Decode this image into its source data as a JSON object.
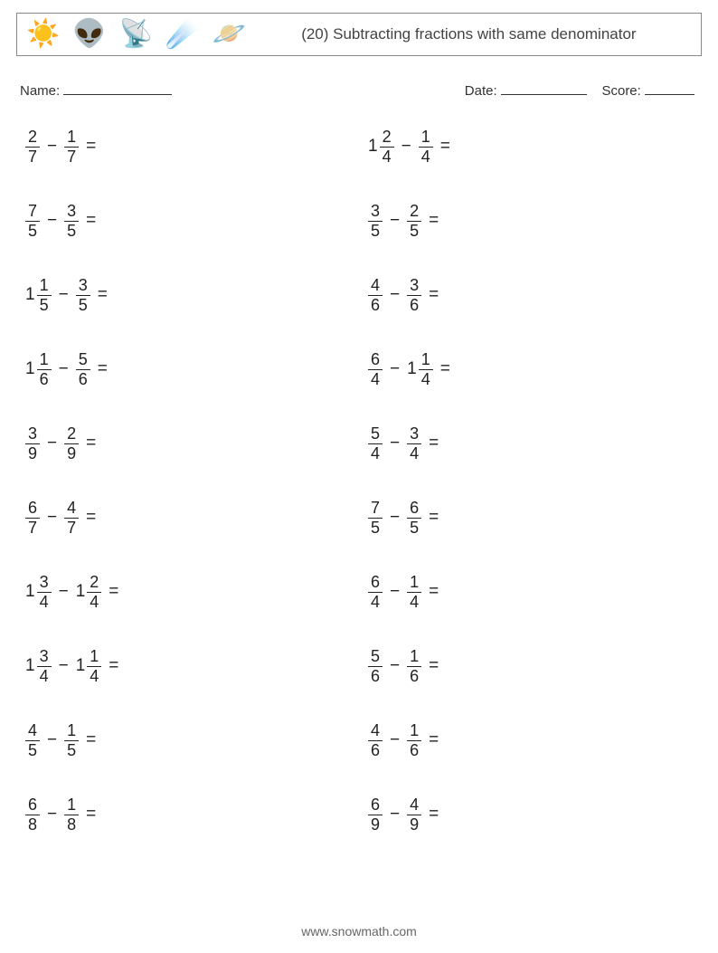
{
  "header": {
    "title": "(20) Subtracting fractions with same denominator",
    "icons": [
      "sun",
      "alien",
      "antenna",
      "meteor",
      "saturn"
    ]
  },
  "meta": {
    "name_label": "Name:",
    "date_label": "Date:",
    "score_label": "Score:"
  },
  "icon_glyphs": {
    "sun": "☀️",
    "alien": "👽",
    "antenna": "📡",
    "meteor": "☄️",
    "saturn": "🪐"
  },
  "layout": {
    "columns": 2,
    "rows": 10
  },
  "style": {
    "page_bg": "#ffffff",
    "text_color": "#333333",
    "border_color": "#888888",
    "fraction_bar_color": "#222222",
    "title_fontsize": 17,
    "body_fontsize": 19,
    "fraction_fontsize": 18
  },
  "minus": "−",
  "equals": "=",
  "problems": [
    {
      "col": 0,
      "a": {
        "n": 2,
        "d": 7
      },
      "b": {
        "n": 1,
        "d": 7
      }
    },
    {
      "col": 1,
      "a": {
        "whole": 1,
        "n": 2,
        "d": 4
      },
      "b": {
        "n": 1,
        "d": 4
      }
    },
    {
      "col": 0,
      "a": {
        "n": 7,
        "d": 5
      },
      "b": {
        "n": 3,
        "d": 5
      }
    },
    {
      "col": 1,
      "a": {
        "n": 3,
        "d": 5
      },
      "b": {
        "n": 2,
        "d": 5
      }
    },
    {
      "col": 0,
      "a": {
        "whole": 1,
        "n": 1,
        "d": 5
      },
      "b": {
        "n": 3,
        "d": 5
      }
    },
    {
      "col": 1,
      "a": {
        "n": 4,
        "d": 6
      },
      "b": {
        "n": 3,
        "d": 6
      }
    },
    {
      "col": 0,
      "a": {
        "whole": 1,
        "n": 1,
        "d": 6
      },
      "b": {
        "n": 5,
        "d": 6
      }
    },
    {
      "col": 1,
      "a": {
        "n": 6,
        "d": 4
      },
      "b": {
        "whole": 1,
        "n": 1,
        "d": 4
      }
    },
    {
      "col": 0,
      "a": {
        "n": 3,
        "d": 9
      },
      "b": {
        "n": 2,
        "d": 9
      }
    },
    {
      "col": 1,
      "a": {
        "n": 5,
        "d": 4
      },
      "b": {
        "n": 3,
        "d": 4
      }
    },
    {
      "col": 0,
      "a": {
        "n": 6,
        "d": 7
      },
      "b": {
        "n": 4,
        "d": 7
      }
    },
    {
      "col": 1,
      "a": {
        "n": 7,
        "d": 5
      },
      "b": {
        "n": 6,
        "d": 5
      }
    },
    {
      "col": 0,
      "a": {
        "whole": 1,
        "n": 3,
        "d": 4
      },
      "b": {
        "whole": 1,
        "n": 2,
        "d": 4
      }
    },
    {
      "col": 1,
      "a": {
        "n": 6,
        "d": 4
      },
      "b": {
        "n": 1,
        "d": 4
      }
    },
    {
      "col": 0,
      "a": {
        "whole": 1,
        "n": 3,
        "d": 4
      },
      "b": {
        "whole": 1,
        "n": 1,
        "d": 4
      }
    },
    {
      "col": 1,
      "a": {
        "n": 5,
        "d": 6
      },
      "b": {
        "n": 1,
        "d": 6
      }
    },
    {
      "col": 0,
      "a": {
        "n": 4,
        "d": 5
      },
      "b": {
        "n": 1,
        "d": 5
      }
    },
    {
      "col": 1,
      "a": {
        "n": 4,
        "d": 6
      },
      "b": {
        "n": 1,
        "d": 6
      }
    },
    {
      "col": 0,
      "a": {
        "n": 6,
        "d": 8
      },
      "b": {
        "n": 1,
        "d": 8
      }
    },
    {
      "col": 1,
      "a": {
        "n": 6,
        "d": 9
      },
      "b": {
        "n": 4,
        "d": 9
      }
    }
  ],
  "footer": "www.snowmath.com"
}
